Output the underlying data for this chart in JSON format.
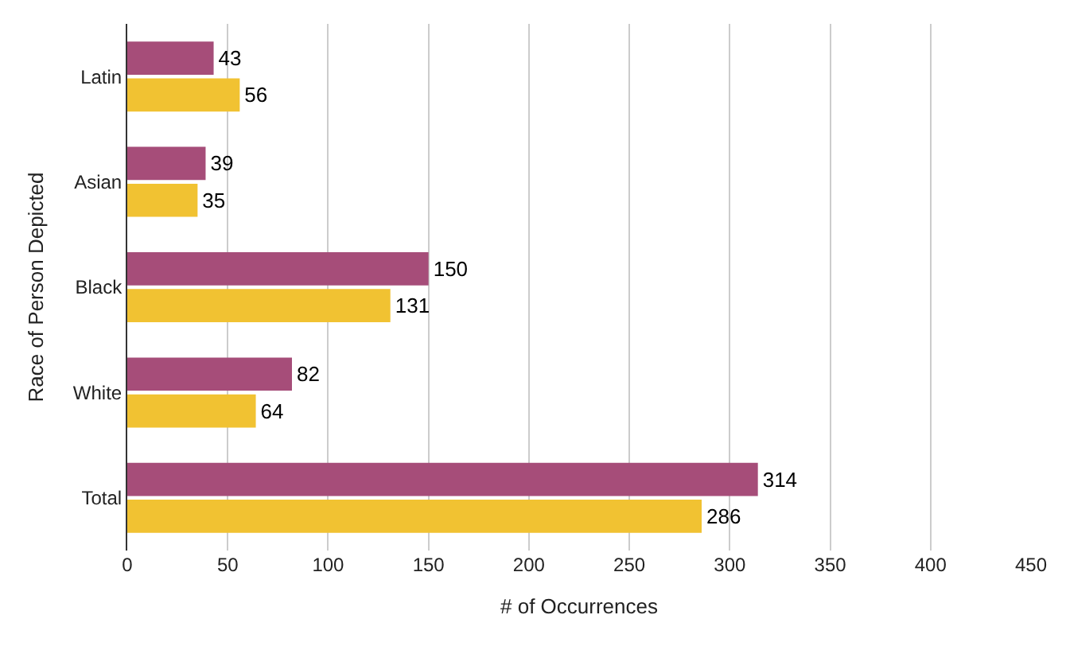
{
  "chart_data": {
    "type": "bar",
    "orientation": "horizontal",
    "xlabel": "# of Occurrences",
    "ylabel": "Race of Person Depicted",
    "categories": [
      "Latin",
      "Asian",
      "Black",
      "White",
      "Total"
    ],
    "series": [
      {
        "color": "#a64d79",
        "values": [
          43,
          39,
          150,
          82,
          314
        ]
      },
      {
        "color": "#f1c232",
        "values": [
          56,
          35,
          131,
          64,
          286
        ]
      }
    ],
    "xlim": [
      0,
      450
    ],
    "xticks": [
      0,
      50,
      100,
      150,
      200,
      250,
      300,
      350,
      400,
      450
    ],
    "grid": "x",
    "data_labels": true
  }
}
